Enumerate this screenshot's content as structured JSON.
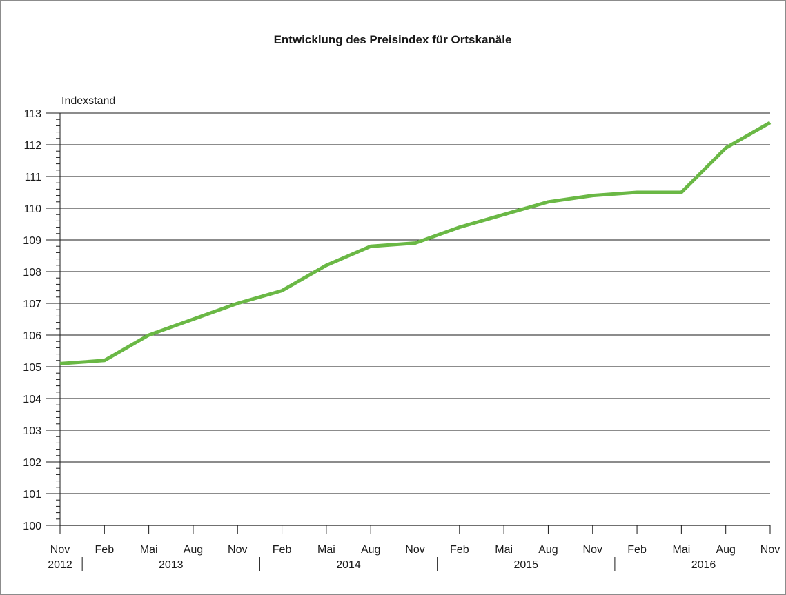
{
  "chart_data": {
    "type": "line",
    "title": "Entwicklung des Preisindex für Ortskanäle",
    "ylabel": "Indexstand",
    "xlabel": "",
    "ylim": [
      100,
      113
    ],
    "yticks": [
      "100",
      "101",
      "102",
      "103",
      "104",
      "105",
      "106",
      "107",
      "108",
      "109",
      "110",
      "111",
      "112",
      "113"
    ],
    "grid": true,
    "x": [
      "Nov 2012",
      "Feb 2013",
      "Mai 2013",
      "Aug 2013",
      "Nov 2013",
      "Feb 2014",
      "Mai 2014",
      "Aug 2014",
      "Nov 2014",
      "Feb 2015",
      "Mai 2015",
      "Aug 2015",
      "Nov 2015",
      "Feb 2016",
      "Mai 2016",
      "Aug 2016",
      "Nov 2016"
    ],
    "month_labels": [
      "Nov",
      "Feb",
      "Mai",
      "Aug",
      "Nov",
      "Feb",
      "Mai",
      "Aug",
      "Nov",
      "Feb",
      "Mai",
      "Aug",
      "Nov",
      "Feb",
      "Mai",
      "Aug",
      "Nov"
    ],
    "year_labels": [
      {
        "label": "2012",
        "center": 0
      },
      {
        "label": "2013",
        "center": 2.5
      },
      {
        "label": "2014",
        "center": 6.5
      },
      {
        "label": "2015",
        "center": 10.5
      },
      {
        "label": "2016",
        "center": 14.5
      }
    ],
    "year_separators": [
      0.5,
      4.5,
      8.5,
      12.5
    ],
    "series": [
      {
        "values": [
          105.1,
          105.2,
          106.0,
          106.5,
          107.0,
          107.4,
          108.2,
          108.8,
          108.9,
          109.4,
          109.8,
          110.2,
          110.4,
          110.5,
          110.5,
          111.9,
          112.7
        ],
        "color": "#6ab845"
      }
    ]
  },
  "colors": {
    "line": "#6ab845",
    "grid": "#1a1a1a",
    "frame": "#8c8c8c"
  }
}
